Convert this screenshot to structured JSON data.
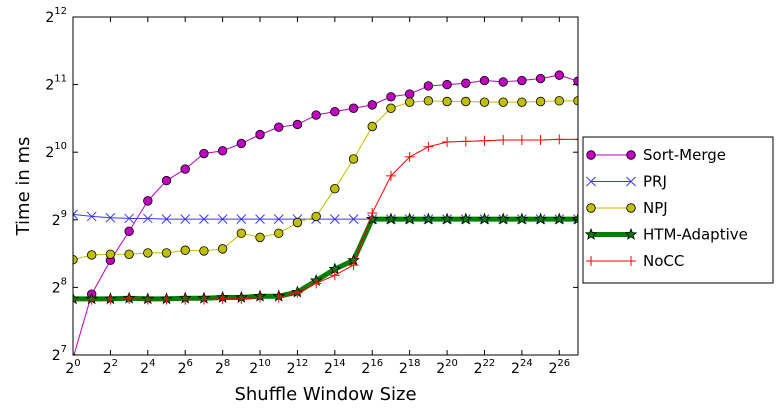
{
  "chart_data": {
    "type": "line",
    "xlabel": "Shuffle Window Size",
    "ylabel": "Time in ms",
    "x_scale": "log2",
    "y_scale": "log2",
    "xlim_exp": [
      0,
      27
    ],
    "ylim_exp": [
      7,
      12
    ],
    "x_ticks": [
      "2",
      "2",
      "2",
      "2",
      "2",
      "2",
      "2",
      "2",
      "2",
      "2",
      "2",
      "2",
      "2",
      "2"
    ],
    "x_tick_exps": [
      "0",
      "2",
      "4",
      "6",
      "8",
      "10",
      "12",
      "14",
      "16",
      "18",
      "20",
      "22",
      "24",
      "26"
    ],
    "y_ticks": [
      "2",
      "2",
      "2",
      "2",
      "2",
      "2"
    ],
    "y_tick_exps": [
      "7",
      "8",
      "9",
      "10",
      "11",
      "12"
    ],
    "grid": false,
    "legend_placement": "right-outside",
    "x_exp": [
      0,
      1,
      2,
      3,
      4,
      5,
      6,
      7,
      8,
      9,
      10,
      11,
      12,
      13,
      14,
      15,
      16,
      17,
      18,
      19,
      20,
      21,
      22,
      23,
      24,
      25,
      26,
      27
    ],
    "series": [
      {
        "name": "Sort-Merge",
        "color": "#bf00bf",
        "marker": "circle",
        "log2_values": [
          6.95,
          7.9,
          8.4,
          8.83,
          9.28,
          9.58,
          9.75,
          9.98,
          10.02,
          10.13,
          10.26,
          10.37,
          10.41,
          10.55,
          10.6,
          10.65,
          10.7,
          10.82,
          10.86,
          10.98,
          11.0,
          11.02,
          11.06,
          11.04,
          11.06,
          11.09,
          11.14,
          11.05
        ]
      },
      {
        "name": "PRJ",
        "color": "#3a3aff",
        "marker": "x",
        "log2_values": [
          9.08,
          9.05,
          9.03,
          9.02,
          9.02,
          9.01,
          9.01,
          9.01,
          9.01,
          9.01,
          9.01,
          9.01,
          9.01,
          9.01,
          9.01,
          9.01,
          9.01,
          9.01,
          9.01,
          9.01,
          9.01,
          9.01,
          9.01,
          9.01,
          9.01,
          9.01,
          9.01,
          9.01
        ]
      },
      {
        "name": "NPJ",
        "color": "#bfbf00",
        "marker": "circle",
        "log2_values": [
          8.41,
          8.48,
          8.49,
          8.49,
          8.51,
          8.51,
          8.55,
          8.54,
          8.57,
          8.8,
          8.74,
          8.8,
          8.96,
          9.05,
          9.46,
          9.9,
          10.38,
          10.65,
          10.74,
          10.76,
          10.75,
          10.75,
          10.74,
          10.74,
          10.74,
          10.75,
          10.76,
          10.76
        ]
      },
      {
        "name": "HTM-Adaptive",
        "color": "#007f00",
        "marker": "star",
        "log2_values": [
          7.83,
          7.83,
          7.83,
          7.84,
          7.83,
          7.83,
          7.84,
          7.84,
          7.85,
          7.85,
          7.87,
          7.87,
          7.93,
          8.1,
          8.27,
          8.4,
          9.01,
          9.01,
          9.01,
          9.01,
          9.01,
          9.01,
          9.01,
          9.01,
          9.01,
          9.01,
          9.01,
          9.01
        ]
      },
      {
        "name": "NoCC",
        "color": "#ff0000",
        "marker": "plus",
        "log2_values": [
          7.82,
          7.82,
          7.82,
          7.83,
          7.82,
          7.82,
          7.82,
          7.82,
          7.83,
          7.83,
          7.85,
          7.85,
          7.92,
          8.06,
          8.18,
          8.33,
          9.1,
          9.65,
          9.93,
          10.08,
          10.15,
          10.16,
          10.17,
          10.18,
          10.18,
          10.18,
          10.19,
          10.19
        ]
      }
    ]
  }
}
